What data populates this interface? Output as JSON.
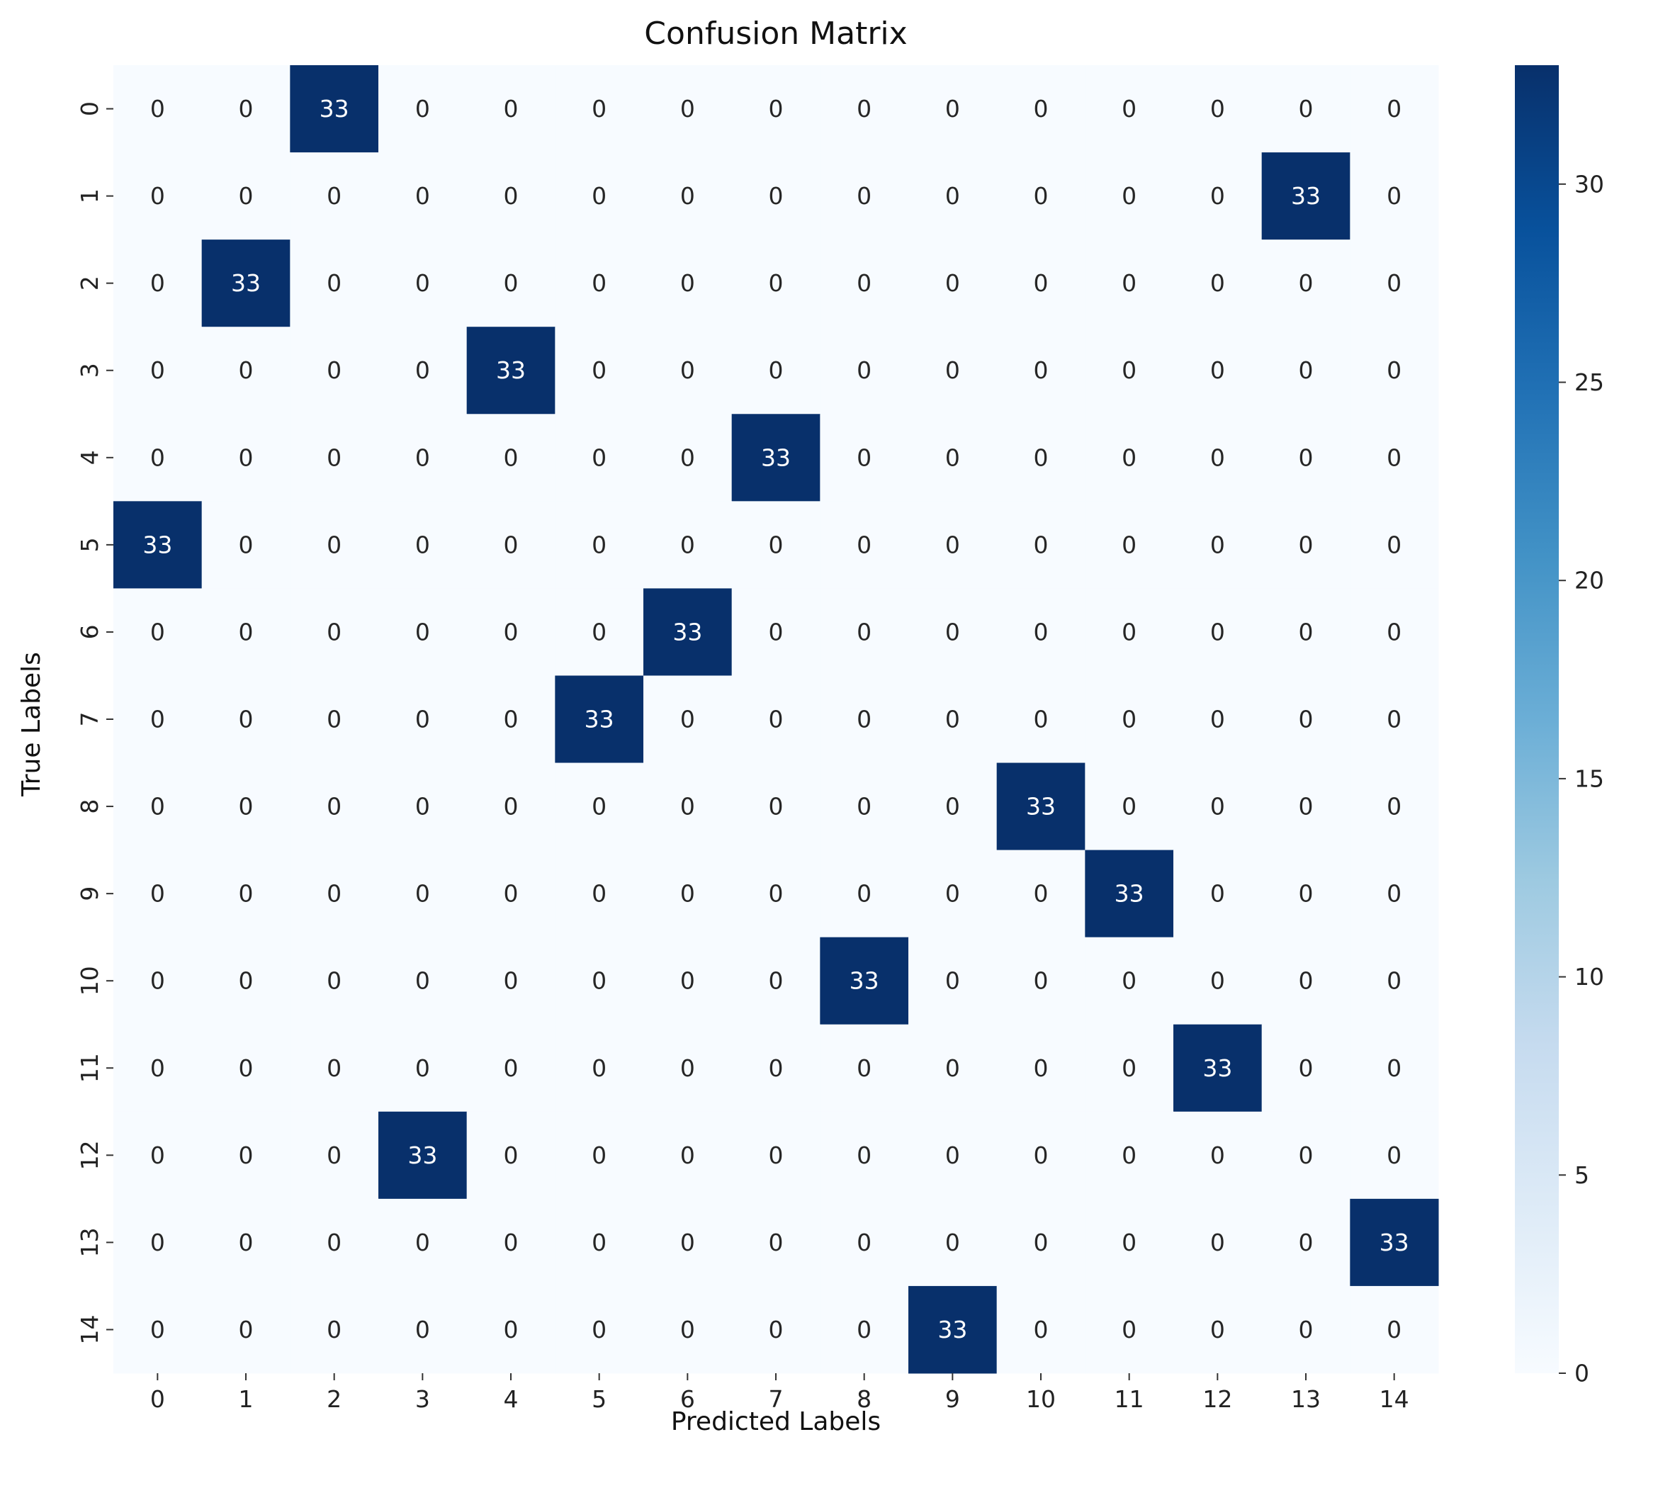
{
  "chart_data": {
    "type": "heatmap",
    "title": "Confusion Matrix",
    "xlabel": "Predicted Labels",
    "ylabel": "True Labels",
    "x_tick_labels": [
      "0",
      "1",
      "2",
      "3",
      "4",
      "5",
      "6",
      "7",
      "8",
      "9",
      "10",
      "11",
      "12",
      "13",
      "14"
    ],
    "y_tick_labels": [
      "0",
      "1",
      "2",
      "3",
      "4",
      "5",
      "6",
      "7",
      "8",
      "9",
      "10",
      "11",
      "12",
      "13",
      "14"
    ],
    "matrix": [
      [
        0,
        0,
        33,
        0,
        0,
        0,
        0,
        0,
        0,
        0,
        0,
        0,
        0,
        0,
        0
      ],
      [
        0,
        0,
        0,
        0,
        0,
        0,
        0,
        0,
        0,
        0,
        0,
        0,
        0,
        33,
        0
      ],
      [
        0,
        33,
        0,
        0,
        0,
        0,
        0,
        0,
        0,
        0,
        0,
        0,
        0,
        0,
        0
      ],
      [
        0,
        0,
        0,
        0,
        33,
        0,
        0,
        0,
        0,
        0,
        0,
        0,
        0,
        0,
        0
      ],
      [
        0,
        0,
        0,
        0,
        0,
        0,
        0,
        33,
        0,
        0,
        0,
        0,
        0,
        0,
        0
      ],
      [
        33,
        0,
        0,
        0,
        0,
        0,
        0,
        0,
        0,
        0,
        0,
        0,
        0,
        0,
        0
      ],
      [
        0,
        0,
        0,
        0,
        0,
        0,
        33,
        0,
        0,
        0,
        0,
        0,
        0,
        0,
        0
      ],
      [
        0,
        0,
        0,
        0,
        0,
        33,
        0,
        0,
        0,
        0,
        0,
        0,
        0,
        0,
        0
      ],
      [
        0,
        0,
        0,
        0,
        0,
        0,
        0,
        0,
        0,
        0,
        33,
        0,
        0,
        0,
        0
      ],
      [
        0,
        0,
        0,
        0,
        0,
        0,
        0,
        0,
        0,
        0,
        0,
        33,
        0,
        0,
        0
      ],
      [
        0,
        0,
        0,
        0,
        0,
        0,
        0,
        0,
        33,
        0,
        0,
        0,
        0,
        0,
        0
      ],
      [
        0,
        0,
        0,
        0,
        0,
        0,
        0,
        0,
        0,
        0,
        0,
        0,
        33,
        0,
        0
      ],
      [
        0,
        0,
        0,
        33,
        0,
        0,
        0,
        0,
        0,
        0,
        0,
        0,
        0,
        0,
        0
      ],
      [
        0,
        0,
        0,
        0,
        0,
        0,
        0,
        0,
        0,
        0,
        0,
        0,
        0,
        0,
        33
      ],
      [
        0,
        0,
        0,
        0,
        0,
        0,
        0,
        0,
        0,
        33,
        0,
        0,
        0,
        0,
        0
      ]
    ],
    "colorbar": {
      "range": [
        0,
        33
      ],
      "ticks": [
        0,
        5,
        10,
        15,
        20,
        25,
        30
      ],
      "colormap": "Blues"
    },
    "colors": {
      "low": "#f7fbff",
      "high": "#08306b",
      "text_on_light": "#262626",
      "text_on_dark": "#ffffff"
    }
  }
}
